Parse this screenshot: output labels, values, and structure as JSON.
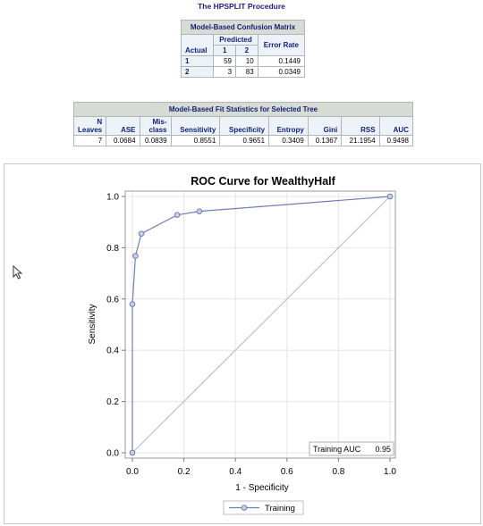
{
  "procedure_title": "The HPSPLIT Procedure",
  "confusion_matrix": {
    "caption": "Model-Based Confusion Matrix",
    "predicted_header": "Predicted",
    "actual_header": "Actual",
    "class_headers": [
      "1",
      "2"
    ],
    "error_header": "Error Rate",
    "rows": [
      {
        "actual": "1",
        "pred1": "59",
        "pred2": "10",
        "error": "0.1449"
      },
      {
        "actual": "2",
        "pred1": "3",
        "pred2": "83",
        "error": "0.0349"
      }
    ]
  },
  "fit_stats": {
    "caption": "Model-Based Fit Statistics for Selected Tree",
    "headers": {
      "n_leaves": "N Leaves",
      "ase": "ASE",
      "misclass": "Mis-class",
      "sensitivity": "Sensitivity",
      "specificity": "Specificity",
      "entropy": "Entropy",
      "gini": "Gini",
      "rss": "RSS",
      "auc": "AUC"
    },
    "row": {
      "n_leaves": "7",
      "ase": "0.0684",
      "misclass": "0.0839",
      "sensitivity": "0.8551",
      "specificity": "0.9651",
      "entropy": "0.3409",
      "gini": "0.1367",
      "rss": "21.1954",
      "auc": "0.9498"
    }
  },
  "chart_data": {
    "type": "line",
    "title": "ROC Curve for WealthyHalf",
    "xlabel": "1 - Specificity",
    "ylabel": "Sensitivity",
    "xlim": [
      0,
      1
    ],
    "ylim": [
      0,
      1
    ],
    "xticks": [
      "0.0",
      "0.2",
      "0.4",
      "0.6",
      "0.8",
      "1.0"
    ],
    "yticks": [
      "0.0",
      "0.2",
      "0.4",
      "0.6",
      "0.8",
      "1.0"
    ],
    "grid": true,
    "series": [
      {
        "name": "Training",
        "color": "#6f7eb3",
        "x": [
          0.0,
          0.0,
          0.012,
          0.035,
          0.174,
          0.26,
          1.0
        ],
        "y": [
          0.0,
          0.58,
          0.768,
          0.855,
          0.928,
          0.942,
          1.0
        ]
      }
    ],
    "reference_line": {
      "x": [
        0,
        1
      ],
      "y": [
        0,
        1
      ],
      "color": "#c0c0c0"
    },
    "inset_label": "Training AUC",
    "inset_value": "0.95",
    "legend_position": "bottom"
  }
}
